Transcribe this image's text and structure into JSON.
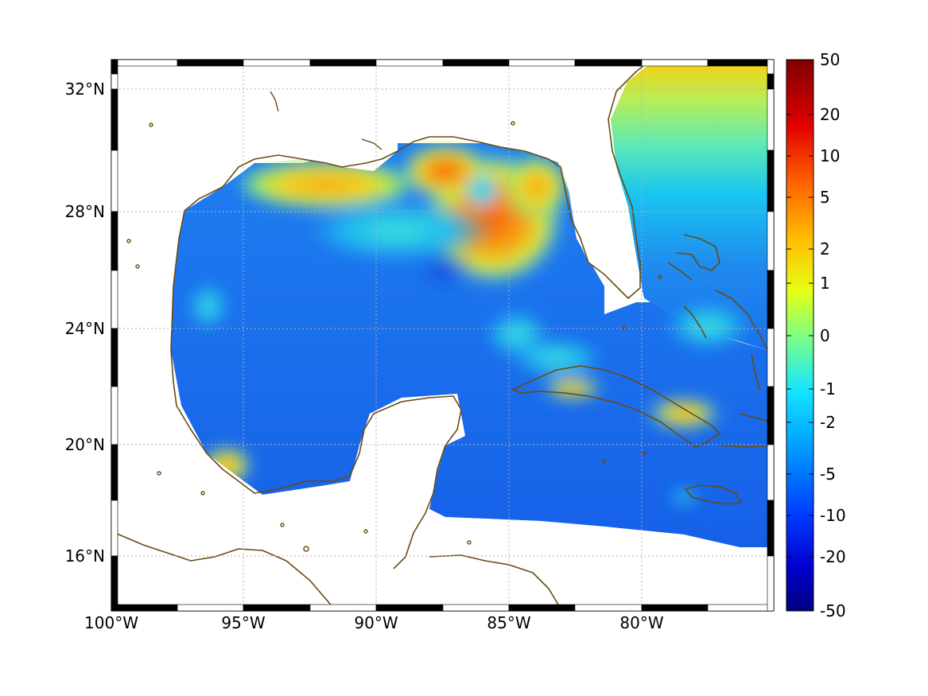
{
  "map": {
    "longitude_labels": [
      "100°W",
      "95°W",
      "90°W",
      "85°W",
      "80°W"
    ],
    "latitude_labels": [
      "32°N",
      "28°N",
      "24°N",
      "20°N",
      "16°N"
    ],
    "land_color": "#ffffff",
    "coastline_color": "#6b4a12",
    "grid": "dotted gray",
    "extent": {
      "lon_min": -100,
      "lon_max": -75,
      "lat_min": 14,
      "lat_max": 33
    }
  },
  "colorbar": {
    "colormap": "jet",
    "tick_labels": [
      "50",
      "20",
      "10",
      "5",
      "2",
      "1",
      "0",
      "-1",
      "-2",
      "-5",
      "-10",
      "-20",
      "-50"
    ]
  }
}
